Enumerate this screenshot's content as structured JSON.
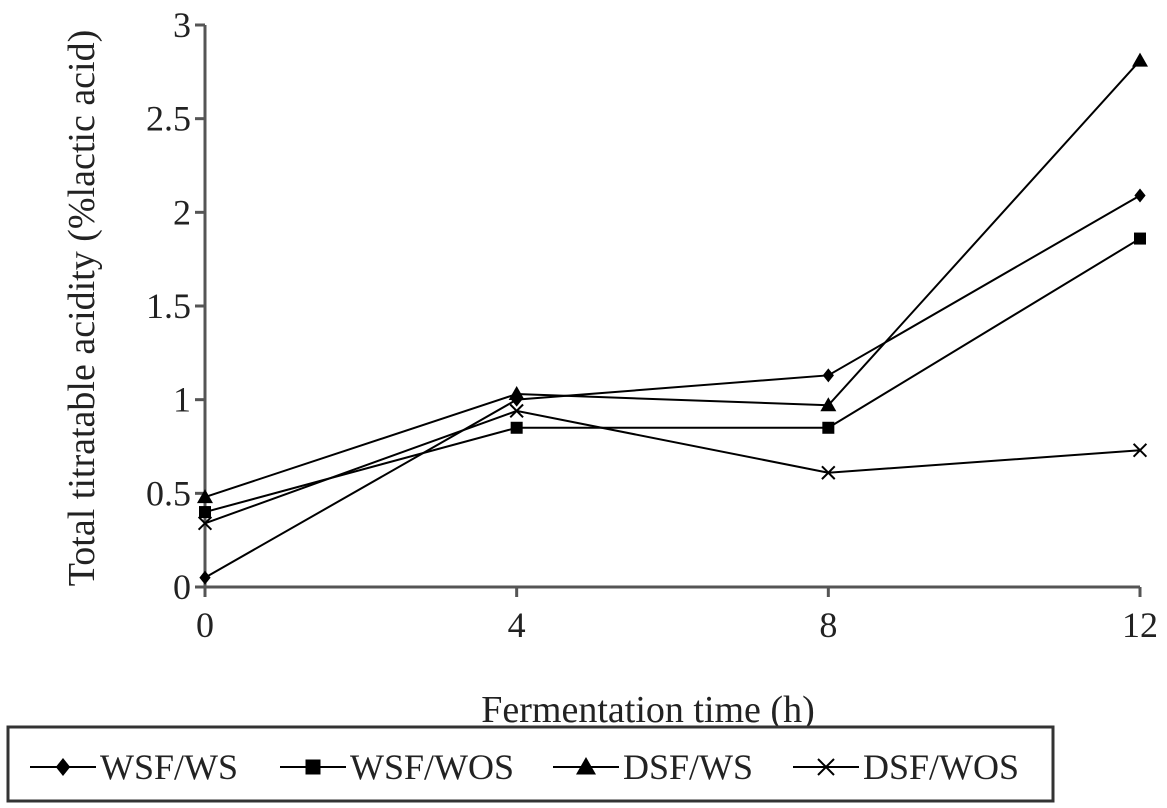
{
  "chart_data": {
    "type": "line",
    "title": "",
    "xlabel": "Fermentation time (h)",
    "ylabel": "Total titratable acidity (%lactic acid)",
    "x": [
      0,
      4,
      8,
      12
    ],
    "x_tick_labels": [
      "0",
      "4",
      "8",
      "12"
    ],
    "xlim": [
      0,
      12
    ],
    "ylim": [
      0,
      3
    ],
    "y_ticks": [
      0,
      0.5,
      1,
      1.5,
      2,
      2.5,
      3
    ],
    "y_tick_labels": [
      "0",
      "0.5",
      "1",
      "1.5",
      "2",
      "2.5",
      "3"
    ],
    "grid": false,
    "legend_position": "bottom",
    "series": [
      {
        "name": "WSF/WS",
        "marker": "diamond",
        "color": "#000000",
        "values": [
          0.05,
          1.0,
          1.13,
          2.09
        ]
      },
      {
        "name": "WSF/WOS",
        "marker": "square",
        "color": "#000000",
        "values": [
          0.4,
          0.85,
          0.85,
          1.86
        ]
      },
      {
        "name": "DSF/WS",
        "marker": "triangle",
        "color": "#000000",
        "values": [
          0.48,
          1.03,
          0.97,
          2.81
        ]
      },
      {
        "name": "DSF/WOS",
        "marker": "x",
        "color": "#000000",
        "values": [
          0.34,
          0.94,
          0.61,
          0.73
        ]
      }
    ]
  }
}
